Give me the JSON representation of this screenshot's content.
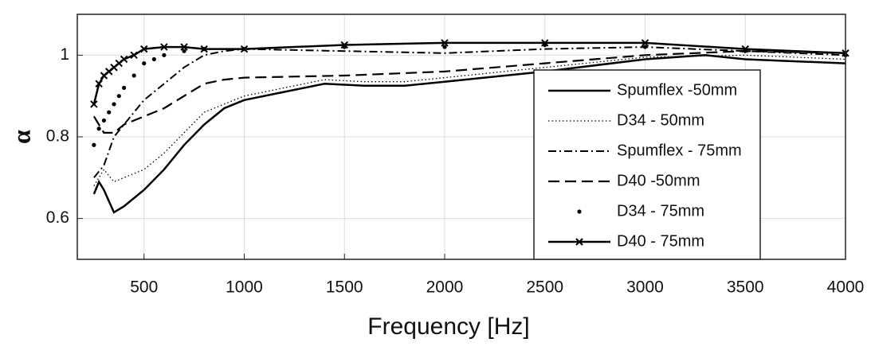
{
  "chart_data": {
    "type": "line",
    "xlabel": "Frequency [Hz]",
    "ylabel": "α",
    "xlim": [
      167,
      4000
    ],
    "xticks": [
      500,
      1000,
      1500,
      2000,
      2500,
      3000,
      3500,
      4000
    ],
    "ylim": [
      0.5,
      1.1
    ],
    "yticks": [
      0.6,
      0.8,
      1
    ],
    "grid": true,
    "legend": "lower right",
    "series": [
      {
        "name": "Spumflex -50mm",
        "color": "#000000",
        "style": "solid",
        "marker": "none",
        "x": [
          250,
          275,
          300,
          350,
          400,
          500,
          600,
          700,
          800,
          900,
          1000,
          1200,
          1400,
          1600,
          1800,
          2000,
          2500,
          3000,
          3300,
          3500,
          4000
        ],
        "values": [
          0.66,
          0.69,
          0.67,
          0.615,
          0.63,
          0.67,
          0.72,
          0.78,
          0.83,
          0.87,
          0.89,
          0.91,
          0.93,
          0.925,
          0.925,
          0.935,
          0.96,
          0.99,
          1.0,
          0.99,
          0.98
        ]
      },
      {
        "name": "D34 - 50mm",
        "color": "#000000",
        "style": "dotted",
        "marker": "none",
        "x": [
          250,
          300,
          350,
          400,
          500,
          600,
          700,
          800,
          900,
          1000,
          1200,
          1400,
          1600,
          1800,
          2000,
          2500,
          3000,
          3500,
          4000
        ],
        "values": [
          0.68,
          0.72,
          0.69,
          0.7,
          0.72,
          0.76,
          0.81,
          0.86,
          0.88,
          0.9,
          0.92,
          0.94,
          0.935,
          0.935,
          0.945,
          0.97,
          0.995,
          1.0,
          0.99
        ]
      },
      {
        "name": "Spumflex - 75mm",
        "color": "#000000",
        "style": "dashdot",
        "marker": "none",
        "x": [
          250,
          300,
          350,
          400,
          500,
          600,
          700,
          800,
          900,
          1000,
          1500,
          2000,
          2500,
          3000,
          3500,
          4000
        ],
        "values": [
          0.7,
          0.73,
          0.8,
          0.83,
          0.89,
          0.93,
          0.97,
          1.0,
          1.01,
          1.015,
          1.01,
          1.005,
          1.015,
          1.02,
          1.01,
          1.0
        ]
      },
      {
        "name": "D40 -50mm",
        "color": "#000000",
        "style": "dashed",
        "marker": "none",
        "x": [
          250,
          300,
          350,
          400,
          500,
          600,
          700,
          800,
          900,
          1000,
          1500,
          2000,
          2500,
          3000,
          3500,
          4000
        ],
        "values": [
          0.85,
          0.81,
          0.81,
          0.83,
          0.85,
          0.87,
          0.9,
          0.93,
          0.94,
          0.945,
          0.95,
          0.96,
          0.98,
          1.0,
          1.01,
          1.005
        ]
      },
      {
        "name": "D34 - 75mm",
        "color": "#000000",
        "style": "none",
        "marker": "dot",
        "x": [
          250,
          275,
          300,
          325,
          350,
          375,
          400,
          450,
          500,
          550,
          600,
          700,
          800,
          1000,
          1500,
          2000,
          2500,
          3000,
          3500,
          4000
        ],
        "values": [
          0.78,
          0.82,
          0.84,
          0.86,
          0.88,
          0.9,
          0.92,
          0.95,
          0.98,
          0.99,
          1.0,
          1.01,
          1.015,
          1.015,
          1.02,
          1.02,
          1.025,
          1.02,
          1.01,
          1.0
        ]
      },
      {
        "name": "D40 - 75mm",
        "color": "#000000",
        "style": "solid",
        "marker": "x",
        "x": [
          250,
          275,
          300,
          325,
          350,
          375,
          400,
          450,
          500,
          600,
          700,
          800,
          1000,
          1500,
          2000,
          2500,
          3000,
          3500,
          4000
        ],
        "values": [
          0.88,
          0.93,
          0.95,
          0.96,
          0.97,
          0.98,
          0.99,
          1.0,
          1.015,
          1.02,
          1.02,
          1.015,
          1.015,
          1.025,
          1.03,
          1.03,
          1.03,
          1.015,
          1.005
        ]
      }
    ]
  }
}
